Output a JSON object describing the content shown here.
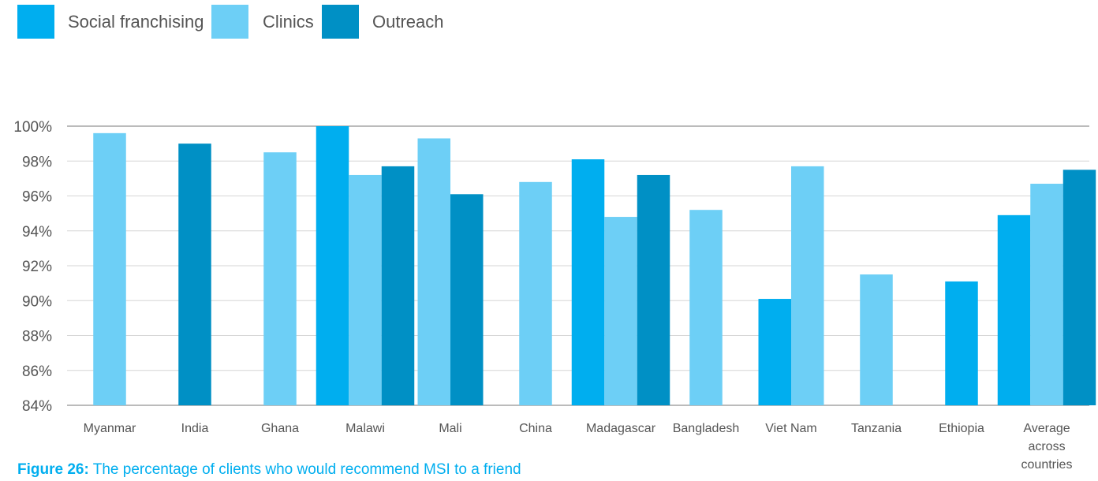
{
  "chart_data": {
    "type": "bar",
    "categories": [
      "Myanmar",
      "India",
      "Ghana",
      "Malawi",
      "Mali",
      "China",
      "Madagascar",
      "Bangladesh",
      "Viet Nam",
      "Tanzania",
      "Ethiopia",
      [
        "Average",
        "across",
        "countries"
      ]
    ],
    "series": [
      {
        "name": "Social franchising",
        "color": "#00AEEF",
        "values": [
          null,
          null,
          null,
          100.0,
          null,
          null,
          98.1,
          null,
          90.1,
          null,
          91.1,
          94.9
        ]
      },
      {
        "name": "Clinics",
        "color": "#6DCFF6",
        "values": [
          99.6,
          null,
          98.5,
          97.2,
          99.3,
          96.8,
          94.8,
          95.2,
          97.7,
          91.5,
          null,
          96.7
        ]
      },
      {
        "name": "Outreach",
        "color": "#0090C5",
        "values": [
          null,
          99.0,
          null,
          97.7,
          96.1,
          null,
          97.2,
          null,
          null,
          null,
          null,
          97.5
        ]
      }
    ],
    "ylim": [
      84,
      100
    ],
    "yticks": [
      84,
      86,
      88,
      90,
      92,
      94,
      96,
      98,
      100
    ],
    "ytick_labels": [
      "84%",
      "86%",
      "88%",
      "90%",
      "92%",
      "94%",
      "96%",
      "98%",
      "100%"
    ],
    "grid": true,
    "legend": "top-left"
  },
  "caption": {
    "label": "Figure 26:",
    "text": " The percentage of clients who would recommend MSI to a friend"
  }
}
